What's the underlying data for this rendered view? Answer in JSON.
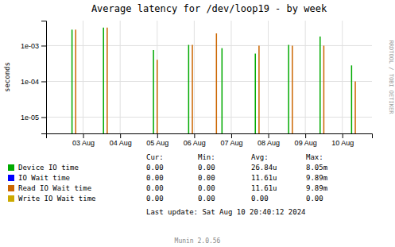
{
  "chart_data": {
    "type": "stem",
    "title": "Average latency for /dev/loop19 - by week",
    "y_label": "seconds",
    "series": [
      {
        "name": "Device IO time",
        "color": "#00aa00",
        "x": [
          0.7,
          1.55,
          2.9,
          3.85,
          4.75,
          5.65,
          6.55,
          7.4,
          8.25
        ],
        "values": [
          0.0028,
          0.0032,
          0.00075,
          0.00105,
          0.00085,
          0.0006,
          0.00105,
          0.0018,
          0.00028
        ]
      },
      {
        "name": "IO Wait time",
        "color": "#0000ff",
        "x": [],
        "values": []
      },
      {
        "name": "Read IO Wait time",
        "color": "#cc6600",
        "x": [
          0.8,
          1.65,
          3.0,
          3.95,
          4.6,
          5.75,
          6.65,
          7.5,
          8.35
        ],
        "values": [
          0.0028,
          0.0032,
          0.0004,
          0.00105,
          0.0022,
          0.001,
          0.001,
          0.001,
          0.0001
        ]
      },
      {
        "name": "Write IO Wait time",
        "color": "#ccaa00",
        "x": [],
        "values": []
      }
    ],
    "xlim": [
      0.0,
      8.8
    ],
    "xticks": [
      {
        "value": 1.0,
        "label": "03 Aug"
      },
      {
        "value": 2.0,
        "label": "04 Aug"
      },
      {
        "value": 3.0,
        "label": "05 Aug"
      },
      {
        "value": 4.0,
        "label": "06 Aug"
      },
      {
        "value": 5.0,
        "label": "07 Aug"
      },
      {
        "value": 6.0,
        "label": "08 Aug"
      },
      {
        "value": 7.0,
        "label": "09 Aug"
      },
      {
        "value": 8.0,
        "label": "10 Aug"
      }
    ],
    "ylim": [
      3.5e-06,
      0.005
    ],
    "yticks": [
      {
        "value": 1e-05,
        "label": "1e-05"
      },
      {
        "value": 0.0001,
        "label": "1e-04"
      },
      {
        "value": 0.001,
        "label": "1e-03"
      }
    ],
    "log": "y",
    "grid": true,
    "legend": "bottom",
    "table": {
      "columns": [
        "Cur:",
        "Min:",
        "Avg:",
        "Max:"
      ],
      "rows": [
        [
          "0.00",
          "0.00",
          "26.84u",
          "8.05m"
        ],
        [
          "0.00",
          "0.00",
          "11.61u",
          "9.89m"
        ],
        [
          "0.00",
          "0.00",
          "11.61u",
          "9.89m"
        ],
        [
          "0.00",
          "0.00",
          "0.00",
          "0.00"
        ]
      ]
    },
    "annotations": [
      "Last update: Sat Aug 10 20:40:12 2024",
      "Munin 2.0.56",
      "RRDTOOL / TOBI OETIKER"
    ]
  }
}
